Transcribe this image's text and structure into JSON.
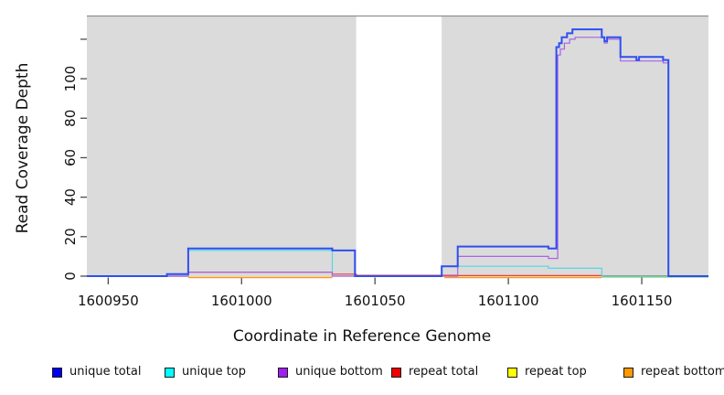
{
  "chart_data": {
    "type": "line",
    "subtype": "step-coverage-plot",
    "title": "",
    "xlabel": "Coordinate in Reference Genome",
    "ylabel": "Read Coverage Depth",
    "xlim": [
      1600942,
      1601175
    ],
    "ylim": [
      0,
      132
    ],
    "grid": "off",
    "x_ticks": [
      {
        "v": 1600950,
        "label": "1600950"
      },
      {
        "v": 1601000,
        "label": "1601000"
      },
      {
        "v": 1601050,
        "label": "1601050"
      },
      {
        "v": 1601100,
        "label": "1601100"
      },
      {
        "v": 1601150,
        "label": "1601150"
      }
    ],
    "y_ticks": [
      {
        "v": 0,
        "label": "0"
      },
      {
        "v": 20,
        "label": "20"
      },
      {
        "v": 40,
        "label": "40"
      },
      {
        "v": 60,
        "label": "60"
      },
      {
        "v": 80,
        "label": "80"
      },
      {
        "v": 100,
        "label": "100"
      },
      {
        "v": 120,
        "label": ""
      }
    ],
    "background_regions": [
      {
        "name": "shaded-left",
        "x1": 1600942,
        "x2": 1601043,
        "color": "#DBDBDB"
      },
      {
        "name": "uncovered-gap",
        "x1": 1601043,
        "x2": 1601075,
        "color": "#FFFFFF"
      },
      {
        "name": "shaded-right",
        "x1": 1601075,
        "x2": 1601175,
        "color": "#DBDBDB"
      }
    ],
    "series": [
      {
        "name": "repeat total",
        "color": "#E8413C",
        "width": 1.2,
        "dy": 0,
        "segments": [
          [
            [
              1600942,
              0
            ],
            [
              1600980,
              2
            ],
            [
              1601034,
              1
            ],
            [
              1601043,
              0.4
            ],
            [
              1601081,
              0.3
            ],
            [
              1601135,
              0.2
            ],
            [
              1601175,
              0.2
            ]
          ]
        ]
      },
      {
        "name": "repeat bottom",
        "color": "#FF9912",
        "width": 1.5,
        "dy": 1.5,
        "segments": [
          [
            [
              1600980,
              0
            ],
            [
              1601034,
              0
            ]
          ],
          [
            [
              1601076,
              0
            ],
            [
              1601135,
              0
            ]
          ]
        ]
      },
      {
        "name": "unique top",
        "color": "#55D6E6",
        "width": 1.2,
        "dy": 0,
        "segments": [
          [
            [
              1600942,
              0
            ],
            [
              1600980,
              13
            ],
            [
              1601034,
              0
            ],
            [
              1601075,
              5
            ],
            [
              1601115,
              4
            ],
            [
              1601135,
              0
            ],
            [
              1601175,
              0
            ]
          ]
        ]
      },
      {
        "name": "repeat top",
        "color": "#7FCC7F",
        "width": 1.2,
        "dy": 1,
        "segments": [
          [
            [
              1601135,
              0
            ],
            [
              1601175,
              0
            ]
          ]
        ]
      },
      {
        "name": "unique bottom",
        "color": "#AA62E3",
        "width": 1.2,
        "dy": 0,
        "segments": [
          [
            [
              1600942,
              0
            ],
            [
              1600980,
              2
            ],
            [
              1601034,
              0
            ],
            [
              1601076,
              0
            ],
            [
              1601081,
              10
            ],
            [
              1601115,
              9
            ],
            [
              1601118.5,
              112
            ],
            [
              1601119.5,
              115
            ],
            [
              1601121,
              118
            ],
            [
              1601123,
              120
            ],
            [
              1601125,
              121
            ],
            [
              1601136,
              118
            ],
            [
              1601137,
              120
            ],
            [
              1601142,
              109
            ],
            [
              1601158,
              108
            ],
            [
              1601160,
              0
            ],
            [
              1601175,
              0
            ]
          ]
        ]
      },
      {
        "name": "unique total",
        "color": "#2E4FF0",
        "width": 2,
        "dy": 0,
        "segments": [
          [
            [
              1600942,
              0
            ],
            [
              1600972,
              1
            ],
            [
              1600980,
              14
            ],
            [
              1601034,
              13
            ],
            [
              1601042.5,
              0
            ],
            [
              1601075,
              5
            ],
            [
              1601081,
              15
            ],
            [
              1601115,
              14
            ],
            [
              1601118,
              116
            ],
            [
              1601119,
              118
            ],
            [
              1601120,
              121
            ],
            [
              1601122,
              123
            ],
            [
              1601124,
              125
            ],
            [
              1601135,
              121
            ],
            [
              1601136,
              119
            ],
            [
              1601137,
              121
            ],
            [
              1601142,
              111
            ],
            [
              1601148,
              109.5
            ],
            [
              1601149,
              111
            ],
            [
              1601158,
              109.5
            ],
            [
              1601160,
              0
            ],
            [
              1601175,
              0
            ]
          ]
        ]
      }
    ],
    "legend": {
      "position": "bottom",
      "entries": [
        {
          "label": "unique total",
          "color": "#0000EE"
        },
        {
          "label": "unique top",
          "color": "#00FFFF"
        },
        {
          "label": "unique bottom",
          "color": "#A020F0"
        },
        {
          "label": "repeat total",
          "color": "#EE0000"
        },
        {
          "label": "repeat top",
          "color": "#FFFF00"
        },
        {
          "label": "repeat bottom",
          "color": "#FF9900"
        }
      ]
    }
  }
}
